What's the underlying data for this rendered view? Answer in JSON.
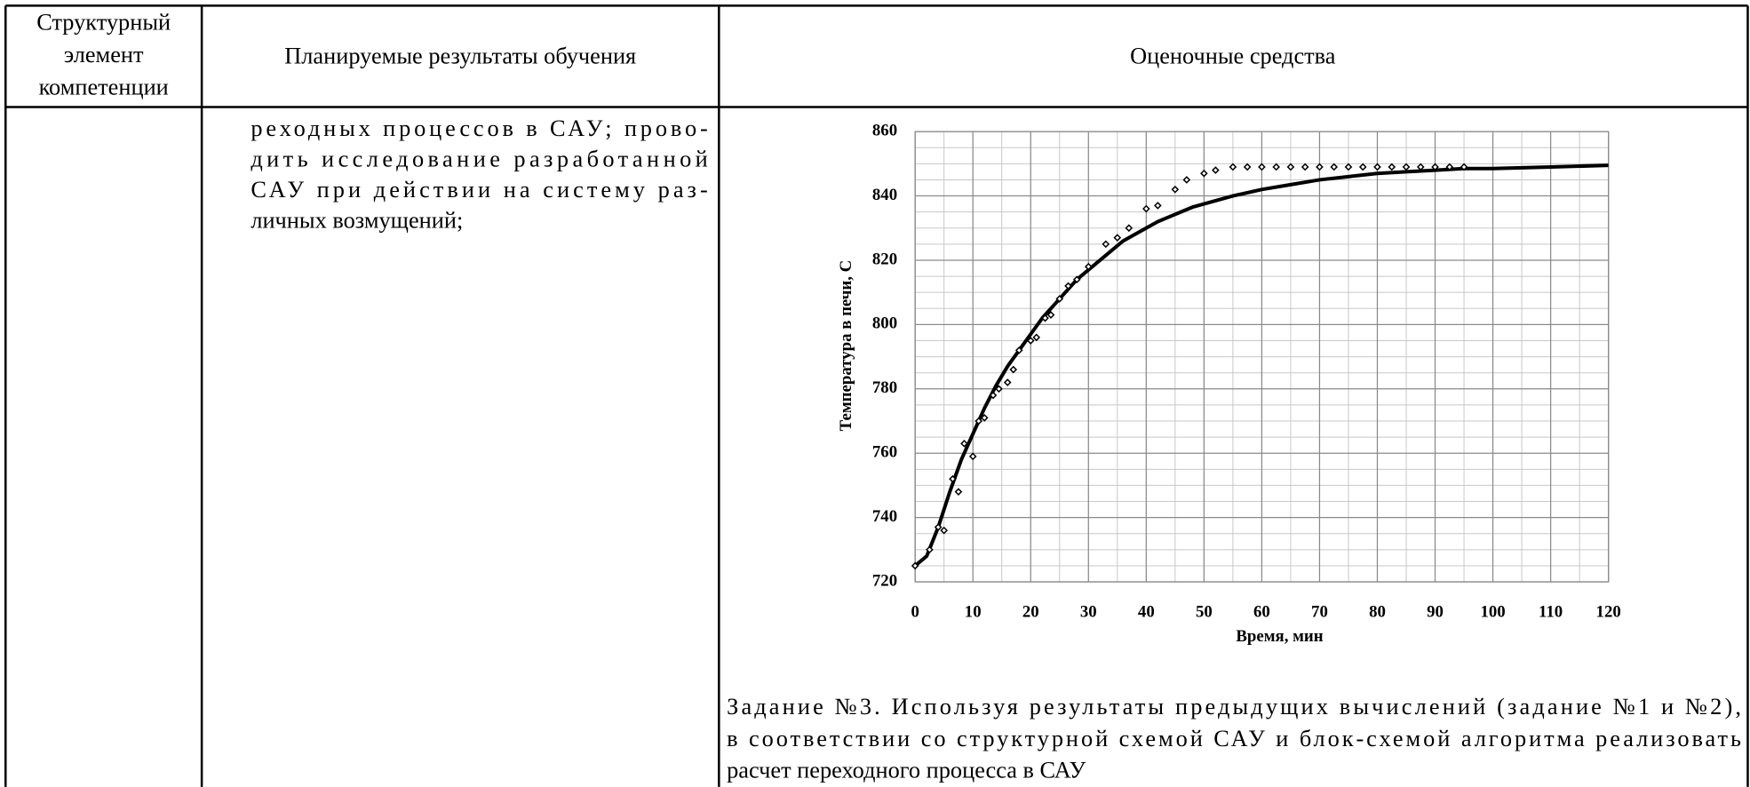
{
  "table": {
    "header": [
      [
        "Структурный",
        "элемент",
        "компетенции"
      ],
      [
        "Планируемые результаты обучения"
      ],
      [
        "Оценочные средства"
      ]
    ],
    "row": {
      "results_text": [
        "реходных процессов в САУ; прово-",
        "дить исследование разработанной",
        "САУ при действии на систему раз-",
        "личных возмущений;"
      ],
      "task": [
        "Задание №3. Используя результаты предыдущих вычислений (задание №1 и №2),",
        "в соответствии со структурной схемой САУ и блок-схемой алгоритма реализовать",
        "расчет переходного процесса в САУ"
      ]
    }
  },
  "chart_data": {
    "type": "line",
    "xlabel": "Время, мин",
    "ylabel": "Температура в печи,  С",
    "xlim": [
      0,
      120
    ],
    "xticks": [
      0,
      10,
      20,
      30,
      40,
      50,
      60,
      70,
      80,
      90,
      100,
      110,
      120
    ],
    "ylim": [
      720,
      860
    ],
    "yticks": [
      720,
      740,
      760,
      780,
      800,
      820,
      840,
      860
    ],
    "grid": true,
    "minor_grid": true,
    "series": [
      {
        "type": "line",
        "color": "#000000",
        "x": [
          0,
          2,
          4,
          6,
          8,
          10,
          12,
          14,
          16,
          18,
          20,
          22,
          24,
          26,
          28,
          30,
          32,
          34,
          36,
          38,
          40,
          42,
          44,
          46,
          48,
          50,
          55,
          60,
          65,
          70,
          75,
          80,
          85,
          90,
          95,
          100,
          110,
          120
        ],
        "values": [
          725,
          728,
          737,
          748,
          758,
          766,
          774,
          781,
          787,
          792,
          797,
          802,
          806,
          810,
          814,
          817,
          820,
          823,
          826,
          828,
          830,
          832,
          833.5,
          835,
          836.5,
          837.5,
          840,
          842,
          843.5,
          845,
          846,
          847,
          847.5,
          848,
          848.5,
          848.5,
          849,
          849.5
        ]
      },
      {
        "type": "scatter",
        "color": "#000000",
        "x": [
          0,
          2.5,
          4,
          5,
          6.5,
          7.5,
          8.5,
          10,
          11,
          12,
          13.5,
          14.5,
          16,
          17,
          18,
          20,
          21,
          22.5,
          23.5,
          25,
          26.5,
          28,
          30,
          33,
          35,
          37,
          40,
          42,
          45,
          47,
          50,
          52,
          55,
          57.5,
          60,
          62.5,
          65,
          67.5,
          70,
          72.5,
          75,
          77.5,
          80,
          82.5,
          85,
          87.5,
          90,
          92.5,
          95
        ],
        "values": [
          725,
          730,
          737,
          736,
          752,
          748,
          763,
          759,
          770,
          771,
          778,
          780,
          782,
          786,
          792,
          795,
          796,
          802,
          803,
          808,
          812,
          814,
          818,
          825,
          827,
          830,
          836,
          837,
          842,
          845,
          847,
          848,
          849,
          849,
          849,
          849,
          849,
          849,
          849,
          849,
          849,
          849,
          849,
          849,
          849,
          849,
          849,
          849,
          849
        ]
      }
    ]
  }
}
